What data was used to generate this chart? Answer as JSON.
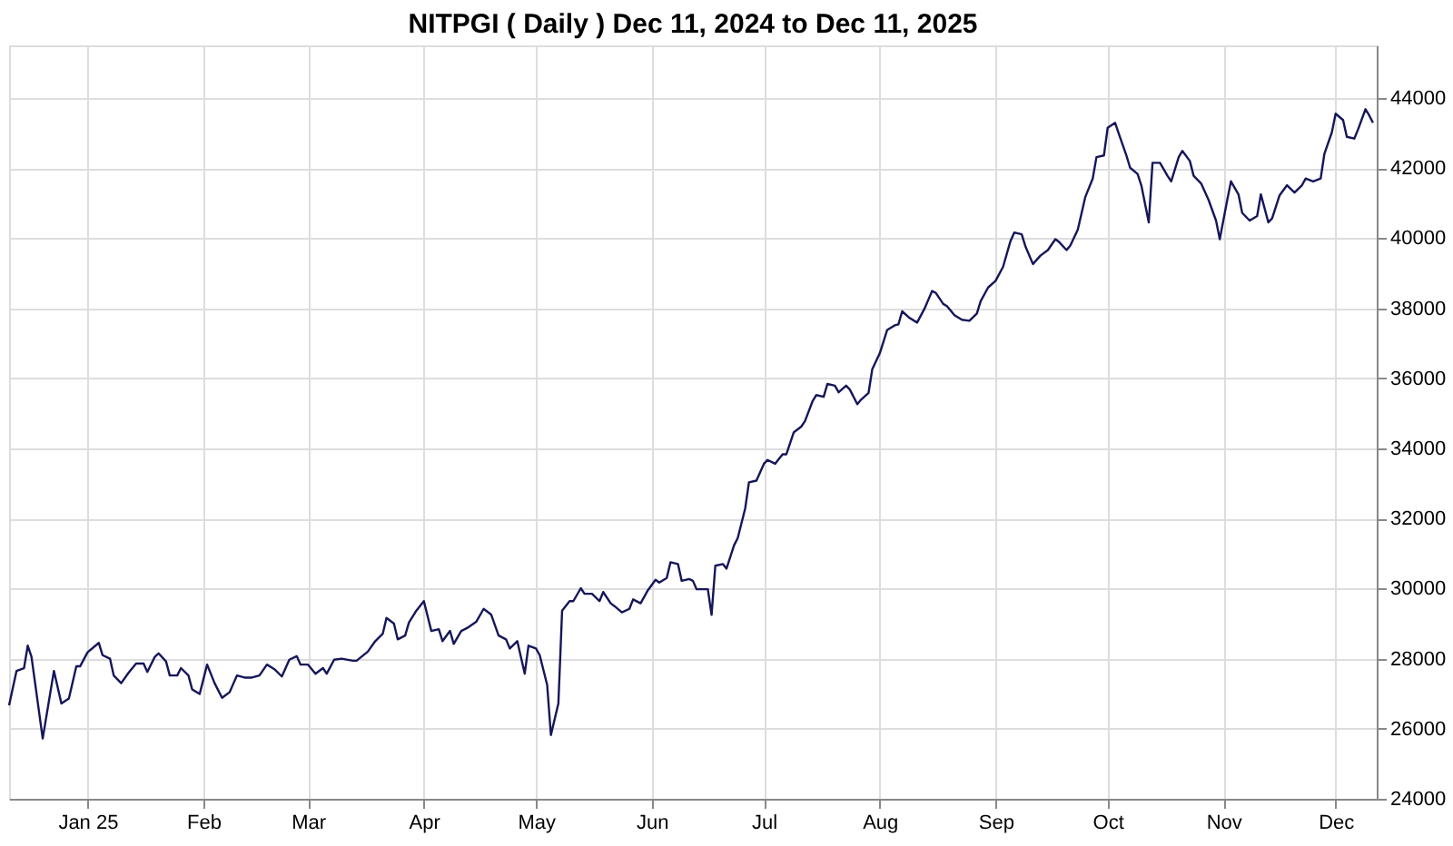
{
  "chart_data": {
    "type": "line",
    "title": "NITPGI ( Daily ) Dec 11, 2024 to Dec 11, 2025",
    "x": [
      "2024-12-11",
      "2024-12-13",
      "2024-12-15",
      "2024-12-16",
      "2024-12-17",
      "2024-12-20",
      "2024-12-23",
      "2024-12-25",
      "2024-12-27",
      "2024-12-29",
      "2024-12-30",
      "2025-01-01",
      "2025-01-04",
      "2025-01-05",
      "2025-01-07",
      "2025-01-08",
      "2025-01-10",
      "2025-01-12",
      "2025-01-14",
      "2025-01-16",
      "2025-01-17",
      "2025-01-19",
      "2025-01-20",
      "2025-01-22",
      "2025-01-23",
      "2025-01-25",
      "2025-01-26",
      "2025-01-28",
      "2025-01-29",
      "2025-01-31",
      "2025-02-02",
      "2025-02-04",
      "2025-02-06",
      "2025-02-08",
      "2025-02-10",
      "2025-02-12",
      "2025-02-14",
      "2025-02-16",
      "2025-02-18",
      "2025-02-20",
      "2025-02-22",
      "2025-02-24",
      "2025-02-26",
      "2025-02-27",
      "2025-03-01",
      "2025-03-03",
      "2025-03-05",
      "2025-03-06",
      "2025-03-08",
      "2025-03-10",
      "2025-03-13",
      "2025-03-14",
      "2025-03-17",
      "2025-03-19",
      "2025-03-21",
      "2025-03-22",
      "2025-03-24",
      "2025-03-25",
      "2025-03-27",
      "2025-03-28",
      "2025-03-30",
      "2025-04-01",
      "2025-04-03",
      "2025-04-05",
      "2025-04-06",
      "2025-04-08",
      "2025-04-09",
      "2025-04-11",
      "2025-04-13",
      "2025-04-15",
      "2025-04-17",
      "2025-04-19",
      "2025-04-21",
      "2025-04-23",
      "2025-04-24",
      "2025-04-26",
      "2025-04-28",
      "2025-04-29",
      "2025-05-01",
      "2025-05-02",
      "2025-05-04",
      "2025-05-05",
      "2025-05-07",
      "2025-05-08",
      "2025-05-10",
      "2025-05-11",
      "2025-05-13",
      "2025-05-14",
      "2025-05-16",
      "2025-05-18",
      "2025-05-19",
      "2025-05-21",
      "2025-05-22",
      "2025-05-24",
      "2025-05-26",
      "2025-05-27",
      "2025-05-29",
      "2025-05-31",
      "2025-06-02",
      "2025-06-03",
      "2025-06-05",
      "2025-06-06",
      "2025-06-08",
      "2025-06-09",
      "2025-06-11",
      "2025-06-12",
      "2025-06-13",
      "2025-06-16",
      "2025-06-17",
      "2025-06-18",
      "2025-06-20",
      "2025-06-21",
      "2025-06-23",
      "2025-06-24",
      "2025-06-26",
      "2025-06-27",
      "2025-06-29",
      "2025-07-01",
      "2025-07-02",
      "2025-07-04",
      "2025-07-06",
      "2025-07-07",
      "2025-07-09",
      "2025-07-11",
      "2025-07-12",
      "2025-07-14",
      "2025-07-15",
      "2025-07-17",
      "2025-07-18",
      "2025-07-20",
      "2025-07-21",
      "2025-07-23",
      "2025-07-24",
      "2025-07-26",
      "2025-07-27",
      "2025-07-29",
      "2025-07-30",
      "2025-08-01",
      "2025-08-03",
      "2025-08-05",
      "2025-08-06",
      "2025-08-07",
      "2025-08-09",
      "2025-08-11",
      "2025-08-13",
      "2025-08-15",
      "2025-08-16",
      "2025-08-18",
      "2025-08-19",
      "2025-08-21",
      "2025-08-23",
      "2025-08-25",
      "2025-08-27",
      "2025-08-28",
      "2025-08-30",
      "2025-09-01",
      "2025-09-03",
      "2025-09-05",
      "2025-09-06",
      "2025-09-08",
      "2025-09-09",
      "2025-09-11",
      "2025-09-13",
      "2025-09-15",
      "2025-09-17",
      "2025-09-18",
      "2025-09-20",
      "2025-09-21",
      "2025-09-23",
      "2025-09-25",
      "2025-09-27",
      "2025-09-28",
      "2025-09-30",
      "2025-10-01",
      "2025-10-03",
      "2025-10-04",
      "2025-10-06",
      "2025-10-07",
      "2025-10-09",
      "2025-10-10",
      "2025-10-12",
      "2025-10-13",
      "2025-10-15",
      "2025-10-17",
      "2025-10-18",
      "2025-10-20",
      "2025-10-21",
      "2025-10-23",
      "2025-10-24",
      "2025-10-26",
      "2025-10-28",
      "2025-10-30",
      "2025-10-31",
      "2025-11-02",
      "2025-11-03",
      "2025-11-05",
      "2025-11-06",
      "2025-11-08",
      "2025-11-10",
      "2025-11-11",
      "2025-11-13",
      "2025-11-14",
      "2025-11-16",
      "2025-11-18",
      "2025-11-20",
      "2025-11-22",
      "2025-11-23",
      "2025-11-25",
      "2025-11-27",
      "2025-11-28",
      "2025-11-30",
      "2025-12-01",
      "2025-12-03",
      "2025-12-04",
      "2025-12-06",
      "2025-12-07",
      "2025-12-09",
      "2025-12-10",
      "2025-12-11"
    ],
    "series": [
      {
        "color": "#16165a",
        "values": [
          26670,
          27650,
          27730,
          28370,
          28050,
          25720,
          27650,
          26720,
          26860,
          27780,
          27780,
          28180,
          28450,
          28100,
          28000,
          27520,
          27300,
          27600,
          27860,
          27860,
          27620,
          28050,
          28150,
          27920,
          27520,
          27520,
          27730,
          27520,
          27120,
          26990,
          27830,
          27300,
          26880,
          27040,
          27520,
          27460,
          27460,
          27520,
          27830,
          27700,
          27490,
          27970,
          28070,
          27830,
          27830,
          27570,
          27730,
          27570,
          27970,
          28000,
          27940,
          27940,
          28200,
          28500,
          28710,
          29160,
          29000,
          28550,
          28660,
          29030,
          29370,
          29640,
          28790,
          28840,
          28500,
          28790,
          28420,
          28790,
          28900,
          29050,
          29420,
          29260,
          28660,
          28550,
          28290,
          28500,
          27570,
          28370,
          28290,
          28100,
          27250,
          25820,
          26720,
          29370,
          29640,
          29640,
          30010,
          29850,
          29850,
          29640,
          29900,
          29580,
          29500,
          29320,
          29420,
          29690,
          29580,
          29960,
          30250,
          30170,
          30300,
          30750,
          30700,
          30220,
          30270,
          30220,
          29980,
          29980,
          29250,
          30650,
          30700,
          30570,
          31230,
          31440,
          32290,
          33030,
          33080,
          33560,
          33670,
          33560,
          33830,
          33830,
          34460,
          34620,
          34780,
          35340,
          35520,
          35470,
          35840,
          35790,
          35600,
          35790,
          35680,
          35260,
          35390,
          35580,
          36260,
          36710,
          37380,
          37510,
          37540,
          37910,
          37720,
          37590,
          37990,
          38490,
          38440,
          38120,
          38060,
          37800,
          37670,
          37640,
          37850,
          38200,
          38590,
          38780,
          39180,
          39920,
          40160,
          40110,
          39760,
          39260,
          39500,
          39660,
          39970,
          39890,
          39660,
          39790,
          40240,
          41170,
          41700,
          42310,
          42360,
          43150,
          43290,
          42970,
          42360,
          42010,
          41830,
          41510,
          40450,
          42150,
          42150,
          41780,
          41620,
          42310,
          42490,
          42200,
          41780,
          41560,
          41090,
          40500,
          39970,
          41090,
          41620,
          41250,
          40720,
          40500,
          40630,
          41250,
          40450,
          40560,
          41220,
          41510,
          41300,
          41510,
          41700,
          41620,
          41700,
          42410,
          43020,
          43550,
          43370,
          42890,
          42840,
          43100,
          43680,
          43500,
          43290
        ]
      }
    ],
    "xlim": [
      "2024-12-11",
      "2025-12-12"
    ],
    "xticks": [
      {
        "value": "2025-01-01",
        "label": "Jan 25"
      },
      {
        "value": "2025-02-01",
        "label": "Feb"
      },
      {
        "value": "2025-03-01",
        "label": "Mar"
      },
      {
        "value": "2025-04-01",
        "label": "Apr"
      },
      {
        "value": "2025-05-01",
        "label": "May"
      },
      {
        "value": "2025-06-01",
        "label": "Jun"
      },
      {
        "value": "2025-07-01",
        "label": "Jul"
      },
      {
        "value": "2025-08-01",
        "label": "Aug"
      },
      {
        "value": "2025-09-01",
        "label": "Sep"
      },
      {
        "value": "2025-10-01",
        "label": "Oct"
      },
      {
        "value": "2025-11-01",
        "label": "Nov"
      },
      {
        "value": "2025-12-01",
        "label": "Dec"
      }
    ],
    "ylim": [
      24000,
      45500
    ],
    "yticks": [
      24000,
      26000,
      28000,
      30000,
      32000,
      34000,
      36000,
      38000,
      40000,
      42000,
      44000
    ],
    "grid": true,
    "legend": false,
    "marker": "none",
    "line_style": "solid"
  }
}
